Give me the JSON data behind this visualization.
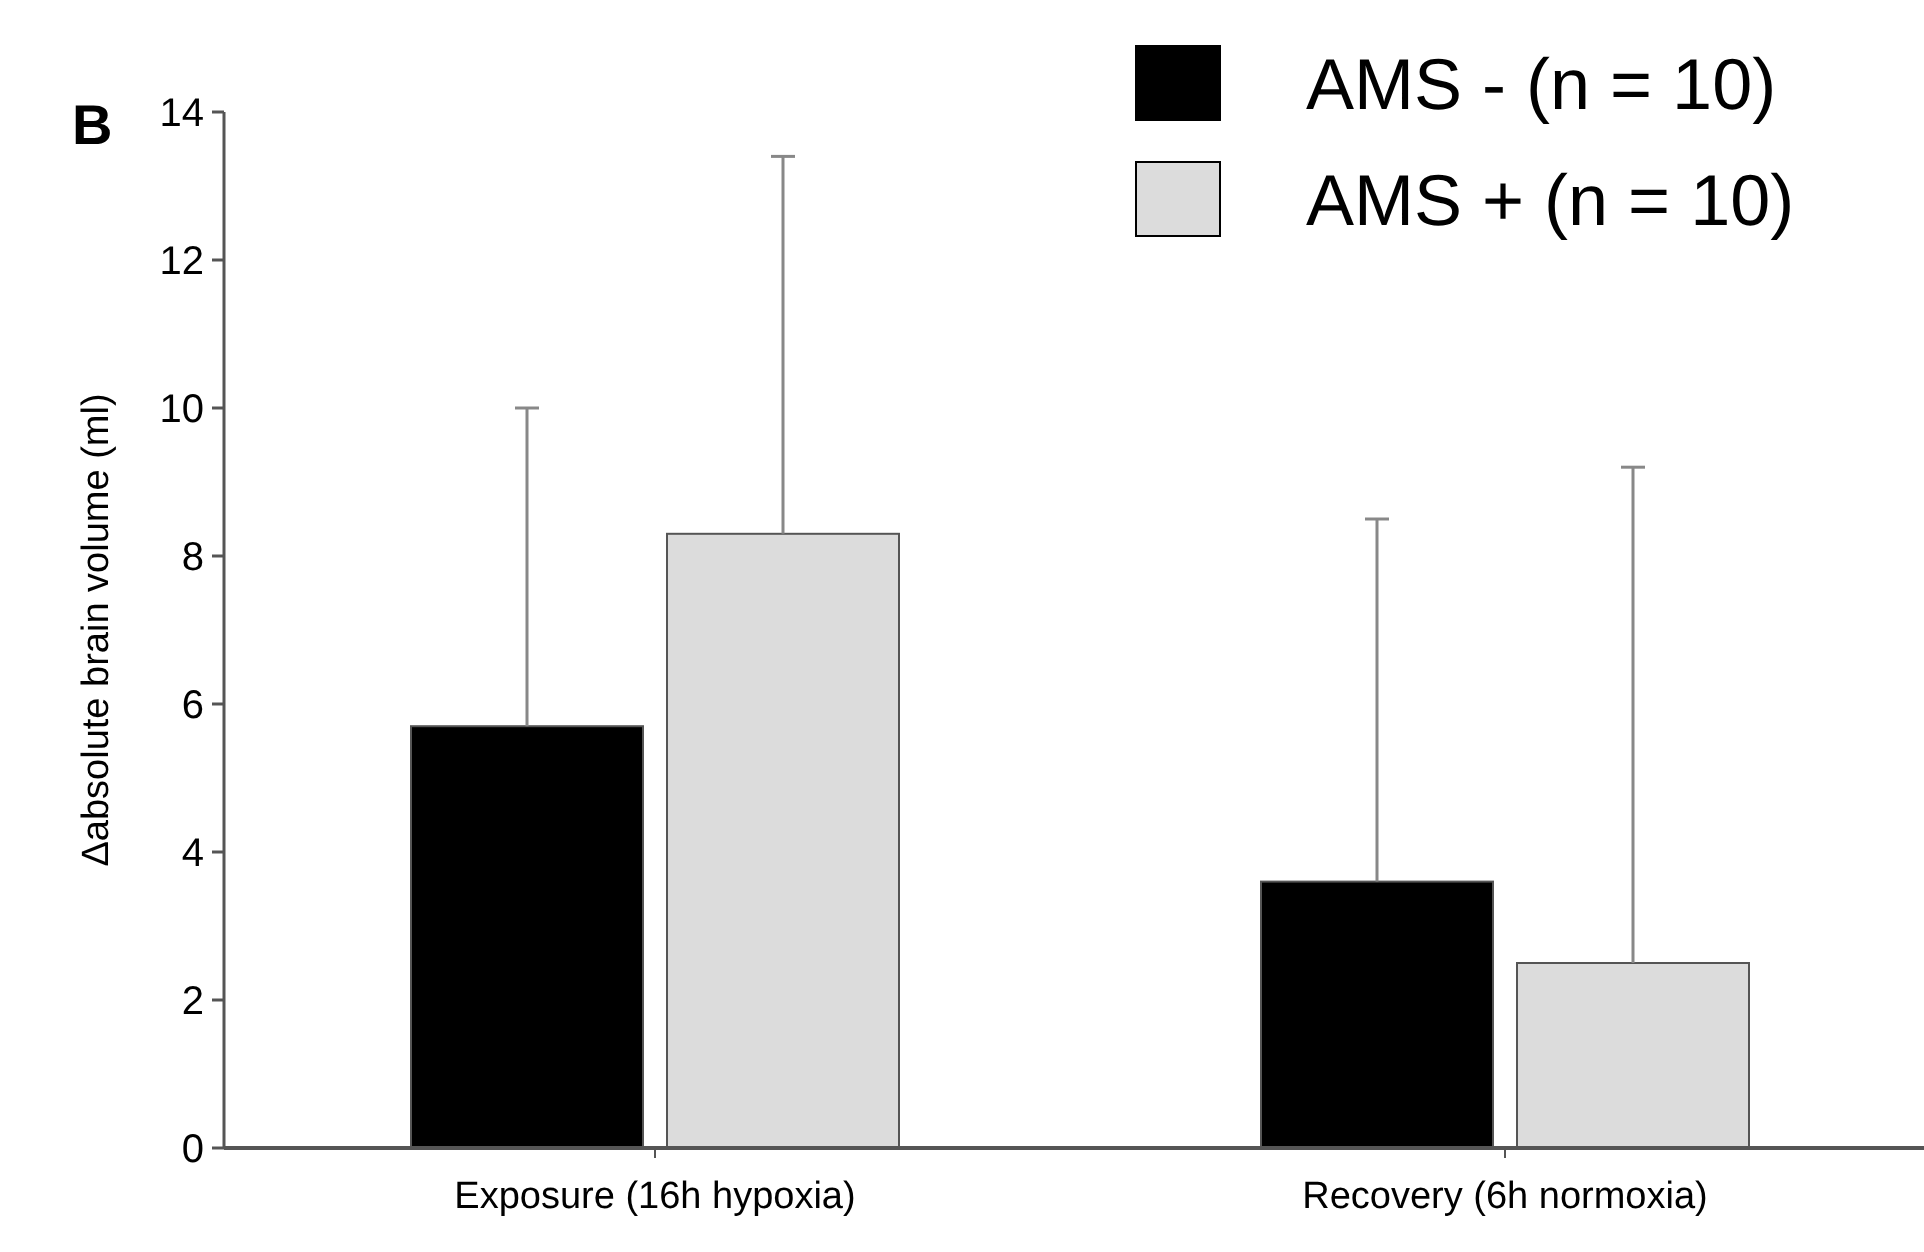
{
  "chart_data": {
    "type": "bar",
    "categories": [
      "Exposure (16h hypoxia)",
      "Recovery (6h normoxia)"
    ],
    "series": [
      {
        "name": "AMS - (n = 10)",
        "color": "#000000",
        "values": [
          5.7,
          3.6
        ],
        "errors": [
          [
            5.7,
            10.0
          ],
          [
            3.6,
            8.5
          ]
        ]
      },
      {
        "name": "AMS + (n = 10)",
        "color": "#dcdcdc",
        "values": [
          8.3,
          2.5
        ],
        "errors": [
          [
            8.3,
            13.4
          ],
          [
            2.5,
            9.2
          ]
        ]
      }
    ],
    "ylabel": "Δabsolute brain volume (ml)",
    "ylim": [
      0,
      14
    ],
    "yticks": [
      0,
      2,
      4,
      6,
      8,
      10,
      12,
      14
    ],
    "annotations": [
      "B"
    ],
    "legend": "top right",
    "grid": false
  }
}
